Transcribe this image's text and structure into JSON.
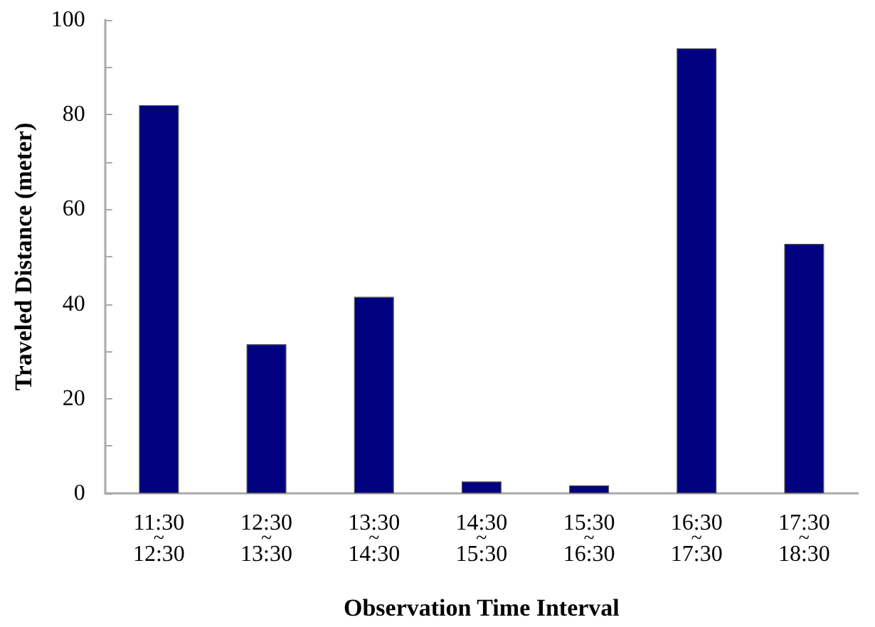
{
  "chart_data": {
    "type": "bar",
    "xlabel": "Observation Time Interval",
    "ylabel": "Traveled Distance (meter)",
    "categories": [
      "11:30~12:30",
      "12:30~13:30",
      "13:30~14:30",
      "14:30~15:30",
      "15:30~16:30",
      "16:30~17:30",
      "17:30~18:30"
    ],
    "values": [
      82,
      31.5,
      41.5,
      2.5,
      1.7,
      94,
      52.7
    ],
    "color": "#000080",
    "ylim": [
      0,
      100
    ],
    "yticks": [
      0,
      {
        "value": 10,
        "label": null
      },
      20,
      {
        "value": 30,
        "label": null
      },
      40,
      {
        "value": 50,
        "label": null
      },
      60,
      {
        "value": 70,
        "label": null
      },
      80,
      {
        "value": 90,
        "label": null
      },
      100
    ],
    "grid": false
  }
}
